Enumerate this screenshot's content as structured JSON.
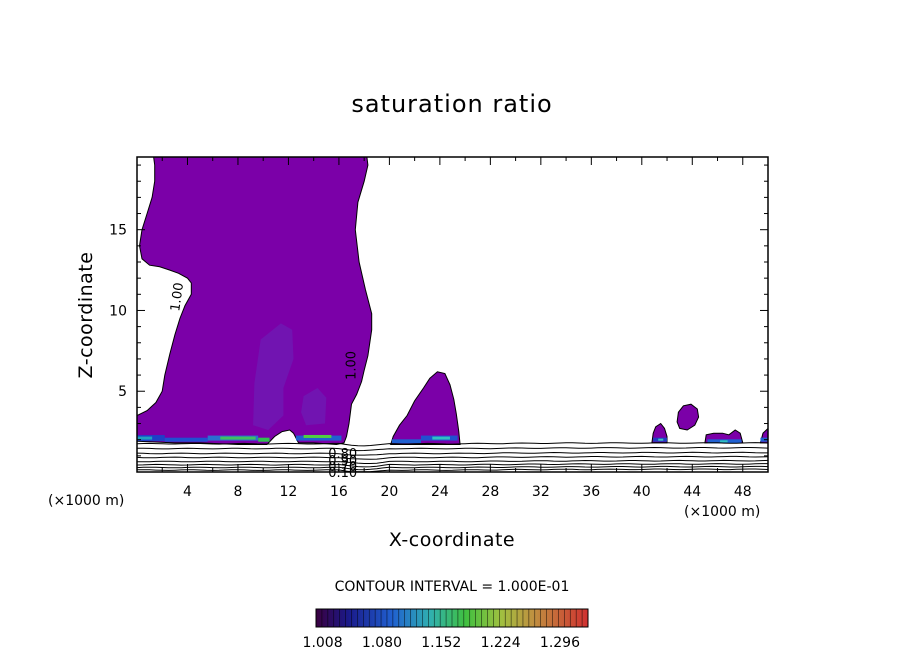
{
  "chart_data": {
    "type": "contour",
    "title": "saturation ratio",
    "xlabel": "X-coordinate",
    "ylabel": "Z-coordinate",
    "x_unit": "(×1000 m)",
    "x_unit_right": "(×1000 m)",
    "xlim": [
      0,
      50
    ],
    "ylim": [
      0,
      19.5
    ],
    "x_ticks": [
      4,
      8,
      12,
      16,
      20,
      24,
      28,
      32,
      36,
      40,
      44,
      48
    ],
    "y_ticks": [
      5,
      10,
      15
    ],
    "contour_labels": [
      "1.00",
      "1.00",
      "0.80",
      "0.90",
      "0.70",
      "0.10"
    ],
    "contour_interval_text": "CONTOUR INTERVAL = 1.000E-01",
    "colorbar": {
      "labels": [
        "1.008",
        "1.080",
        "1.152",
        "1.224",
        "1.296"
      ],
      "min": 1.0,
      "max": 1.33
    },
    "fill_color": "#7b00a8",
    "supersaturated_regions": [
      {
        "name": "main cloud",
        "x_range": [
          0.5,
          18
        ],
        "z_range": [
          2,
          19.5
        ]
      },
      {
        "name": "cloud near 24 km",
        "x_range": [
          20,
          25.5
        ],
        "z_range": [
          1.8,
          6.2
        ]
      },
      {
        "name": "cloud near 41 km",
        "x_range": [
          40.8,
          42
        ],
        "z_range": [
          1.9,
          3.0
        ]
      },
      {
        "name": "cloud near 43 km",
        "x_range": [
          42.8,
          44.5
        ],
        "z_range": [
          2.5,
          4.2
        ]
      },
      {
        "name": "cloud near 46 km",
        "x_range": [
          45,
          48
        ],
        "z_range": [
          1.9,
          2.6
        ]
      },
      {
        "name": "cloud near 50 km",
        "x_range": [
          49.5,
          50
        ],
        "z_range": [
          1.9,
          2.6
        ]
      }
    ]
  }
}
